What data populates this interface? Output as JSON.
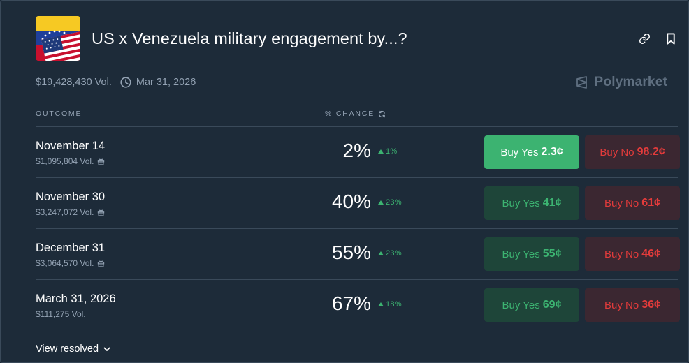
{
  "market": {
    "title": "US x Venezuela military engagement by...?",
    "volume": "$19,428,430 Vol.",
    "end_date": "Mar 31, 2026",
    "brand": "Polymarket"
  },
  "columns": {
    "outcome": "OUTCOME",
    "chance": "% CHANCE"
  },
  "outcomes": [
    {
      "name": "November 14",
      "volume": "$1,095,804 Vol.",
      "chance": "2%",
      "delta": "1%",
      "yes_label": "Buy Yes",
      "yes_price": "2.3¢",
      "no_label": "Buy No",
      "no_price": "98.2¢",
      "gift": true
    },
    {
      "name": "November 30",
      "volume": "$3,247,072 Vol.",
      "chance": "40%",
      "delta": "23%",
      "yes_label": "Buy Yes",
      "yes_price": "41¢",
      "no_label": "Buy No",
      "no_price": "61¢",
      "gift": true
    },
    {
      "name": "December 31",
      "volume": "$3,064,570 Vol.",
      "chance": "55%",
      "delta": "23%",
      "yes_label": "Buy Yes",
      "yes_price": "55¢",
      "no_label": "Buy No",
      "no_price": "46¢",
      "gift": true
    },
    {
      "name": "March 31, 2026",
      "volume": "$111,275 Vol.",
      "chance": "67%",
      "delta": "18%",
      "yes_label": "Buy Yes",
      "yes_price": "69¢",
      "no_label": "Buy No",
      "no_price": "36¢",
      "gift": false
    }
  ],
  "footer": {
    "view_resolved": "View resolved"
  },
  "icons": {
    "link": "link-icon",
    "bookmark": "bookmark-icon",
    "clock": "clock-icon",
    "refresh": "refresh-icon",
    "gift": "gift-icon",
    "chevron": "chevron-down-icon"
  },
  "colors": {
    "background": "#1d2b39",
    "yes_green": "#3cb371",
    "no_red": "#e23b3b",
    "muted": "#94a3b4"
  }
}
